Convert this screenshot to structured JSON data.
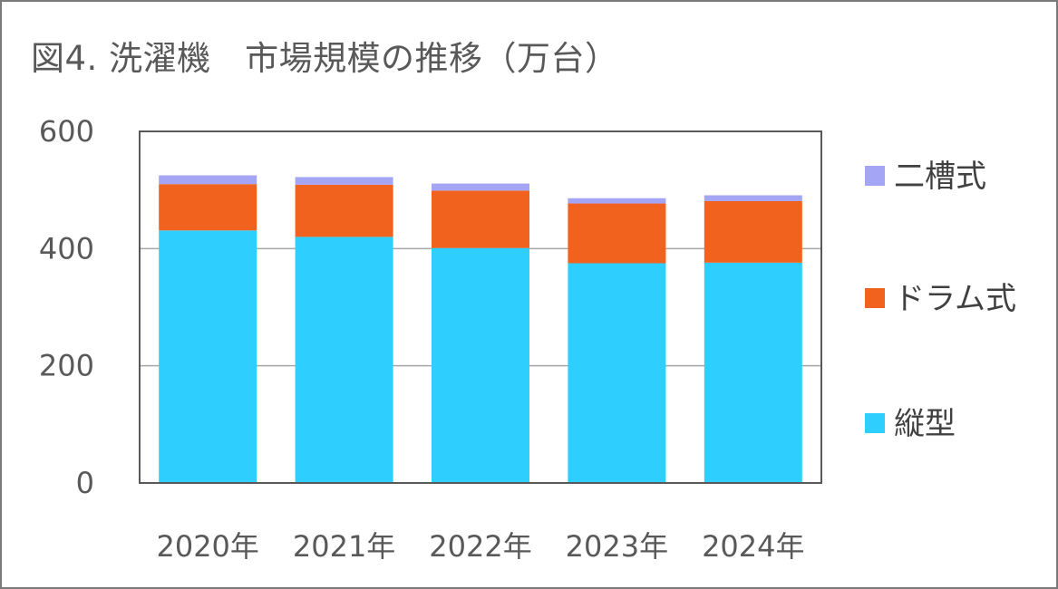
{
  "chart_data": {
    "type": "bar",
    "stacked": true,
    "title": "図4. 洗濯機　市場規模の推移（万台）",
    "xlabel": "",
    "ylabel": "",
    "categories": [
      "2020年",
      "2021年",
      "2022年",
      "2023年",
      "2024年"
    ],
    "ylim": [
      0,
      600
    ],
    "yticks": [
      0,
      200,
      400,
      600
    ],
    "grid": true,
    "legend_position": "right",
    "series": [
      {
        "name": "縦型",
        "color": "#2ecfff",
        "values": [
          431,
          420,
          401,
          375,
          376
        ]
      },
      {
        "name": "ドラム式",
        "color": "#f0621e",
        "values": [
          79,
          89,
          98,
          102,
          105
        ]
      },
      {
        "name": "二槽式",
        "color": "#a5a5f5",
        "values": [
          15,
          13,
          12,
          9,
          10
        ]
      }
    ]
  }
}
